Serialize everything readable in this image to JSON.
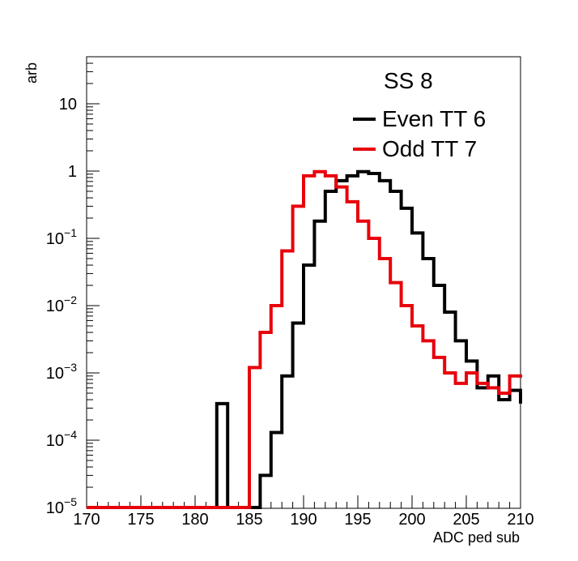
{
  "chart_data": {
    "type": "line",
    "step": true,
    "title": "",
    "xlabel": "ADC ped sub",
    "ylabel": "arb",
    "xlim": [
      170,
      210
    ],
    "ylim": [
      1e-05,
      60
    ],
    "ylog": true,
    "grid": false,
    "legend_position": "top-right",
    "legend_title": "SS 8",
    "x_ticks": [
      {
        "value": 170,
        "label": "170"
      },
      {
        "value": 175,
        "label": "175"
      },
      {
        "value": 180,
        "label": "180"
      },
      {
        "value": 185,
        "label": "185"
      },
      {
        "value": 190,
        "label": "190"
      },
      {
        "value": 195,
        "label": "195"
      },
      {
        "value": 200,
        "label": "200"
      },
      {
        "value": 205,
        "label": "205"
      },
      {
        "value": 210,
        "label": "210"
      }
    ],
    "y_ticks": [
      {
        "value": 1e-05,
        "base": "10",
        "exp": "−5"
      },
      {
        "value": 0.0001,
        "base": "10",
        "exp": "−4"
      },
      {
        "value": 0.001,
        "base": "10",
        "exp": "−3"
      },
      {
        "value": 0.01,
        "base": "10",
        "exp": "−2"
      },
      {
        "value": 0.1,
        "base": "10",
        "exp": "−1"
      },
      {
        "value": 1,
        "base": "1",
        "exp": ""
      },
      {
        "value": 10,
        "base": "10",
        "exp": ""
      }
    ],
    "bin_edges": [
      170,
      171,
      172,
      173,
      174,
      175,
      176,
      177,
      178,
      179,
      180,
      181,
      182,
      183,
      184,
      185,
      186,
      187,
      188,
      189,
      190,
      191,
      192,
      193,
      194,
      195,
      196,
      197,
      198,
      199,
      200,
      201,
      202,
      203,
      204,
      205,
      206,
      207,
      208,
      209,
      210
    ],
    "series": [
      {
        "name": "Even TT 6",
        "color": "#000000",
        "values": [
          1e-05,
          1e-05,
          1e-05,
          1e-05,
          1e-05,
          1e-05,
          1e-05,
          1e-05,
          1e-05,
          1e-05,
          1e-05,
          1e-05,
          0.00035,
          1e-05,
          1e-05,
          1e-05,
          3e-05,
          0.00013,
          0.0009,
          0.0055,
          0.04,
          0.18,
          0.5,
          0.72,
          0.85,
          0.98,
          0.92,
          0.72,
          0.5,
          0.28,
          0.12,
          0.05,
          0.02,
          0.008,
          0.003,
          0.0015,
          0.0006,
          0.0009,
          0.0004,
          0.00055,
          0.00035
        ]
      },
      {
        "name": "Odd TT 7",
        "color": "#e8000b",
        "values": [
          1e-05,
          1e-05,
          1e-05,
          1e-05,
          1e-05,
          1e-05,
          1e-05,
          1e-05,
          1e-05,
          1e-05,
          1e-05,
          1e-05,
          1e-05,
          1e-05,
          1e-05,
          0.0012,
          0.004,
          0.01,
          0.065,
          0.3,
          0.85,
          0.98,
          0.85,
          0.58,
          0.35,
          0.18,
          0.1,
          0.05,
          0.022,
          0.01,
          0.005,
          0.003,
          0.0017,
          0.001,
          0.0007,
          0.001,
          0.0007,
          0.0006,
          0.0005,
          0.0009,
          0.00085
        ]
      }
    ]
  }
}
